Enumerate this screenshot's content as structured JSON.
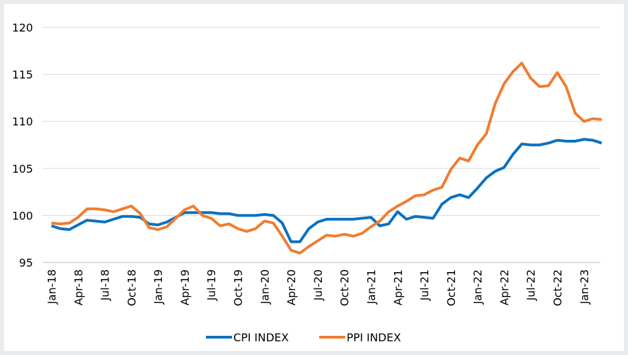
{
  "chart_data": {
    "type": "line",
    "categories": [
      "Jan-18",
      null,
      null,
      "Apr-18",
      null,
      null,
      "Jul-18",
      null,
      null,
      "Oct-18",
      null,
      null,
      "Jan-19",
      null,
      null,
      "Apr-19",
      null,
      null,
      "Jul-19",
      null,
      null,
      "Oct-19",
      null,
      null,
      "Jan-20",
      null,
      null,
      "Apr-20",
      null,
      null,
      "Jul-20",
      null,
      null,
      "Oct-20",
      null,
      null,
      "Jan-21",
      null,
      null,
      "Apr-21",
      null,
      null,
      "Jul-21",
      null,
      null,
      "Oct-21",
      null,
      null,
      "Jan-22",
      null,
      null,
      "Apr-22",
      null,
      null,
      "Jul-22",
      null,
      null,
      "Oct-22",
      null,
      null,
      "Jan-23",
      null,
      null
    ],
    "series": [
      {
        "name": "CPI INDEX",
        "color": "#0a70c0",
        "values": [
          98.9,
          98.6,
          98.5,
          99.0,
          99.5,
          99.4,
          99.3,
          99.6,
          99.9,
          99.9,
          99.8,
          99.1,
          99.0,
          99.3,
          99.8,
          100.3,
          100.3,
          100.3,
          100.3,
          100.2,
          100.2,
          100.0,
          100.0,
          100.0,
          100.1,
          100.0,
          99.2,
          97.2,
          97.2,
          98.6,
          99.3,
          99.6,
          99.6,
          99.6,
          99.6,
          99.7,
          99.8,
          98.9,
          99.1,
          100.4,
          99.6,
          99.9,
          99.8,
          99.7,
          101.2,
          101.9,
          102.2,
          101.9,
          102.9,
          104.0,
          104.7,
          105.1,
          106.5,
          107.6,
          107.5,
          107.5,
          107.7,
          108.0,
          107.9,
          107.9,
          108.1,
          108.0,
          107.7
        ]
      },
      {
        "name": "PPI INDEX",
        "color": "#ef7d31",
        "values": [
          99.2,
          99.1,
          99.2,
          99.8,
          100.7,
          100.7,
          100.6,
          100.4,
          100.7,
          101.0,
          100.2,
          98.7,
          98.5,
          98.8,
          99.7,
          100.6,
          101.0,
          100.0,
          99.7,
          98.9,
          99.1,
          98.6,
          98.3,
          98.6,
          99.4,
          99.2,
          97.8,
          96.3,
          96.0,
          96.7,
          97.3,
          97.9,
          97.8,
          98.0,
          97.8,
          98.1,
          98.8,
          99.4,
          100.4,
          101.0,
          101.5,
          102.1,
          102.2,
          102.7,
          103.0,
          104.9,
          106.1,
          105.8,
          107.5,
          108.7,
          111.9,
          114.0,
          115.3,
          116.2,
          114.6,
          113.7,
          113.8,
          115.2,
          113.7,
          110.9,
          110.0,
          110.3,
          110.2
        ]
      }
    ],
    "ylim": [
      95,
      120
    ],
    "yticks": [
      95,
      100,
      105,
      110,
      115,
      120
    ],
    "grid": true,
    "legend": "bottom"
  }
}
